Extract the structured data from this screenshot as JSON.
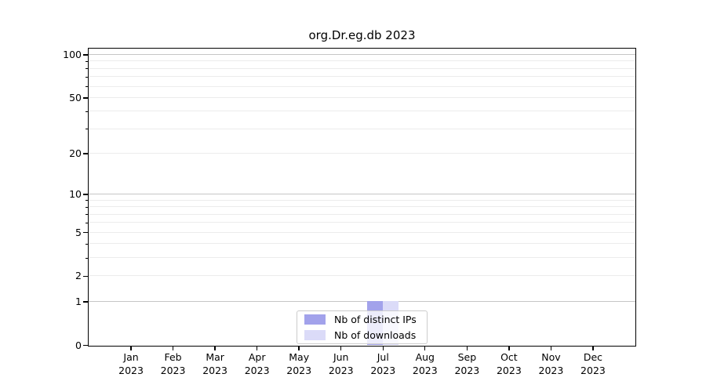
{
  "chart_data": {
    "type": "bar",
    "title": "org.Dr.eg.db 2023",
    "months": [
      "Jan",
      "Feb",
      "Mar",
      "Apr",
      "May",
      "Jun",
      "Jul",
      "Aug",
      "Sep",
      "Oct",
      "Nov",
      "Dec"
    ],
    "year": "2023",
    "series": [
      {
        "name": "Nb of distinct IPs",
        "color": "#a2a2eb",
        "values": [
          0,
          0,
          0,
          0,
          0,
          0,
          1,
          0,
          0,
          0,
          0,
          0
        ]
      },
      {
        "name": "Nb of downloads",
        "color": "#dbdbf8",
        "values": [
          0,
          0,
          0,
          0,
          0,
          0,
          1,
          0,
          0,
          0,
          0,
          0
        ]
      }
    ],
    "xlabel": "",
    "ylabel": "",
    "y_scale": "log1p",
    "ylim": [
      0,
      110
    ],
    "y_ticks": [
      0,
      1,
      2,
      5,
      10,
      20,
      50,
      100
    ],
    "y_major_gridlines": [
      1,
      10,
      100
    ],
    "y_minor_gridlines": [
      2,
      3,
      4,
      5,
      6,
      7,
      8,
      9,
      20,
      30,
      40,
      50,
      60,
      70,
      80,
      90
    ],
    "grid": true,
    "legend_position": "lower center"
  },
  "colors": {
    "major_gridline": "#c6c6c6",
    "minor_gridline": "#ececec",
    "spine": "#000000",
    "legend_border": "#cccccc",
    "text": "#000000"
  }
}
